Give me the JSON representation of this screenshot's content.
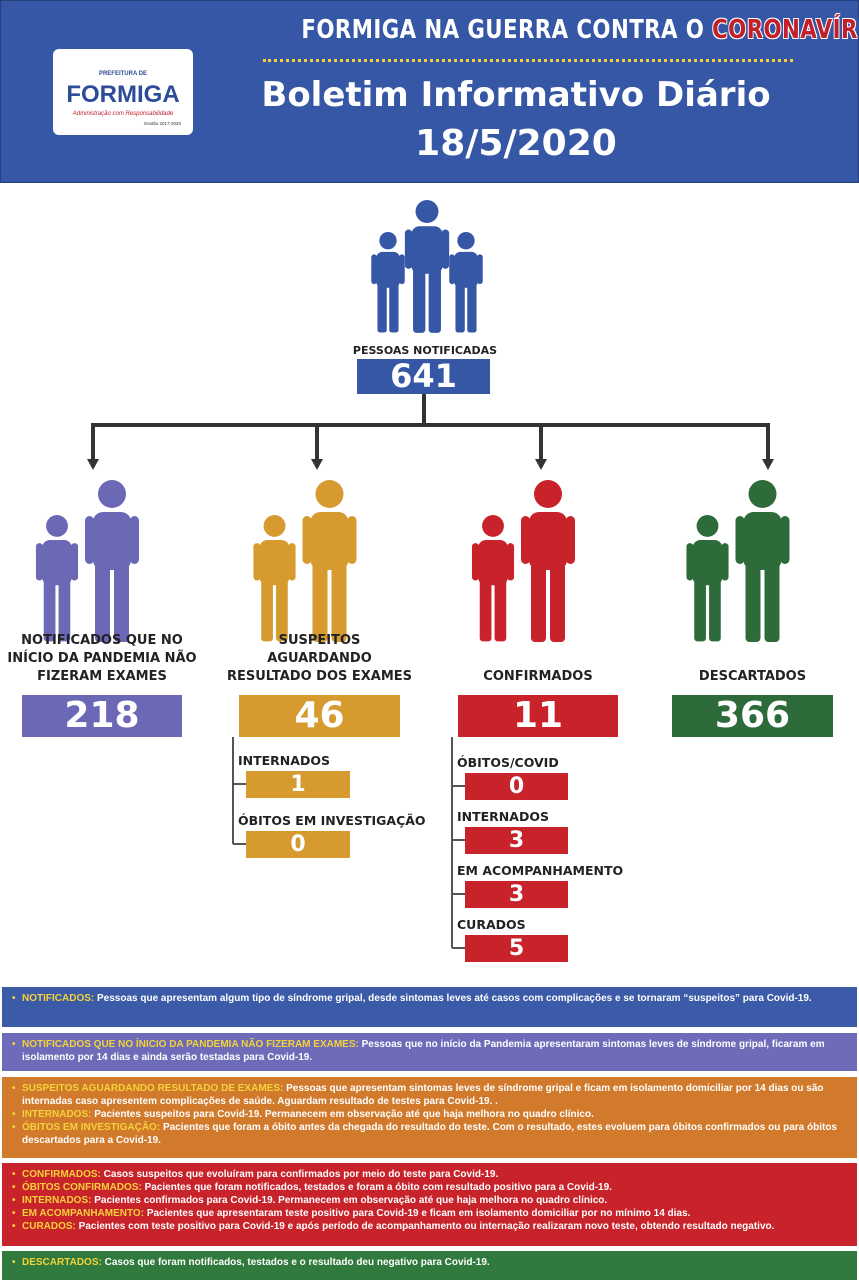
{
  "header": {
    "logo": {
      "top": "PREFEITURA DE",
      "name": "FORMIGA",
      "tagline": "Administração com Responsabilidade",
      "term": "Gestão 2017-2020"
    },
    "campaign_prefix": "FORMIGA NA GUERRA CONTRA O",
    "campaign_highlight": "CORONAVÍRUS",
    "title": "Boletim Informativo Diário",
    "date": "18/5/2020"
  },
  "total": {
    "label": "PESSOAS NOTIFICADAS",
    "value": 641,
    "color": "#3557a5"
  },
  "groups": [
    {
      "label": "NOTIFICADOS QUE NO INÍCIO DA PANDEMIA NÃO FIZERAM EXAMES",
      "value": 218,
      "color": "#6b68b5",
      "sub": []
    },
    {
      "label": "SUSPEITOS AGUARDANDO RESULTADO DOS EXAMES",
      "value": 46,
      "color": "#d69a2e",
      "sub": [
        {
          "label": "INTERNADOS",
          "value": 1
        },
        {
          "label": "ÓBITOS EM INVESTIGAÇÃO",
          "value": 0
        }
      ]
    },
    {
      "label": "CONFIRMADOS",
      "value": 11,
      "color": "#c8222a",
      "sub": [
        {
          "label": "ÓBITOS/COVID",
          "value": 0
        },
        {
          "label": "INTERNADOS",
          "value": 3
        },
        {
          "label": "EM ACOMPANHAMENTO",
          "value": 3
        },
        {
          "label": "CURADOS",
          "value": 5
        }
      ]
    },
    {
      "label": "DESCARTADOS",
      "value": 366,
      "color": "#2e6b3a",
      "sub": []
    }
  ],
  "notes": [
    {
      "color": "#3b5aa8",
      "items": [
        {
          "term": "NOTIFICADOS:",
          "text": "Pessoas que apresentam algum tipo de síndrome gripal, desde sintomas leves até casos com complicações e se tornaram “suspeitos” para Covid-19."
        }
      ]
    },
    {
      "color": "#6e6cb8",
      "items": [
        {
          "term": "NOTIFICADOS QUE NO ÍNICIO DA PANDEMIA NÃO FIZERAM EXAMES:",
          "text": "Pessoas que no início da Pandemia apresentaram sintomas leves de síndrome gripal, ficaram em isolamento por 14 dias e ainda serão testadas para Covid-19."
        }
      ]
    },
    {
      "color": "#d17a2c",
      "items": [
        {
          "term": "SUSPEITOS AGUARDANDO RESULTADO DE EXAMES:",
          "text": "Pessoas que apresentam sintomas leves de síndrome gripal e ficam em isolamento domiciliar por 14 dias ou são internadas caso apresentem complicações de saúde. Aguardam resultado de testes para Covid-19. ."
        },
        {
          "term": "INTERNADOS:",
          "text": "Pacientes suspeitos para Covid-19. Permanecem em observação até que haja melhora no quadro clínico."
        },
        {
          "term": "ÓBITOS EM INVESTIGAÇÃO:",
          "text": "Pacientes que foram a óbito antes da chegada do resultado do teste. Com o resultado, estes evoluem para óbitos confirmados ou para óbitos descartados para a Covid-19."
        }
      ]
    },
    {
      "color": "#c8222a",
      "items": [
        {
          "term": "CONFIRMADOS:",
          "text": "Casos suspeitos que evoluíram para confirmados por meio do teste para Covid-19."
        },
        {
          "term": "ÓBITOS CONFIRMADOS:",
          "text": "Pacientes que foram notificados, testados e foram a óbito com resultado positivo para a Covid-19."
        },
        {
          "term": "INTERNADOS:",
          "text": "Pacientes confirmados para Covid-19. Permanecem em observação até que haja melhora no quadro clínico."
        },
        {
          "term": "EM ACOMPANHAMENTO:",
          "text": "Pacientes que apresentaram teste positivo para Covid-19 e ficam em isolamento domiciliar por no mínimo 14 dias."
        },
        {
          "term": "CURADOS:",
          "text": "Pacientes com teste positivo para Covid-19 e após período de acompanhamento ou internação realizaram novo teste, obtendo resultado negativo."
        }
      ]
    },
    {
      "color": "#2f7a3c",
      "items": [
        {
          "term": "DESCARTADOS:",
          "text": "Casos que foram notificados, testados e o resultado deu negativo para Covid-19."
        }
      ]
    }
  ]
}
